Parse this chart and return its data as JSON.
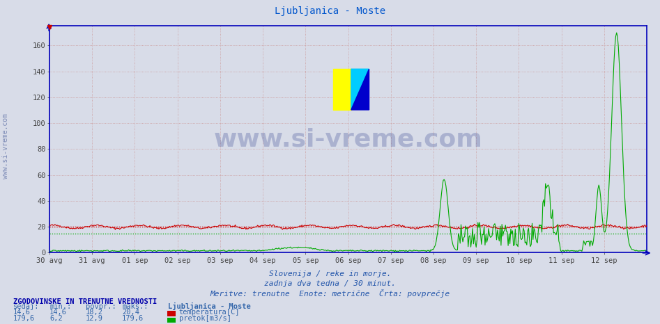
{
  "title": "Ljubljanica - Moste",
  "title_color": "#0055cc",
  "background_color": "#d8dce8",
  "plot_bg_color": "#d8dce8",
  "xlim": [
    0,
    672
  ],
  "ylim": [
    0,
    175
  ],
  "yticks": [
    0,
    20,
    40,
    60,
    80,
    100,
    120,
    140,
    160
  ],
  "xtick_labels": [
    "30 avg",
    "31 avg",
    "01 sep",
    "02 sep",
    "03 sep",
    "04 sep",
    "05 sep",
    "06 sep",
    "07 sep",
    "08 sep",
    "09 sep",
    "10 sep",
    "11 sep",
    "12 sep"
  ],
  "xtick_positions": [
    0,
    48,
    96,
    144,
    192,
    240,
    288,
    336,
    384,
    432,
    480,
    528,
    576,
    624
  ],
  "subtitle1": "Slovenija / reke in morje.",
  "subtitle2": "zadnja dva tedna / 30 minut.",
  "subtitle3": "Meritve: trenutne  Enote: metrične  Črta: povprečje",
  "subtitle_color": "#2255aa",
  "watermark": "www.si-vreme.com",
  "watermark_color": "#223388",
  "temp_color": "#cc0000",
  "flow_color": "#00aa00",
  "avg_temp": 20.0,
  "avg_flow": 15.0,
  "bottom_text_header": "ZGODOVINSKE IN TRENUTNE VREDNOSTI",
  "bottom_cols": [
    "sedaj:",
    "min.:",
    "povpr.:",
    "maks.:"
  ],
  "temp_values": [
    "14,6",
    "14,6",
    "18,2",
    "20,4"
  ],
  "flow_values": [
    "179,6",
    "6,2",
    "12,9",
    "179,6"
  ],
  "temp_label": "temperatura[C]",
  "flow_label": "pretok[m3/s]",
  "station_label": "Ljubljanica - Moste",
  "grid_color": "#cc9999",
  "spine_color": "#0000bb",
  "tick_color": "#444444"
}
